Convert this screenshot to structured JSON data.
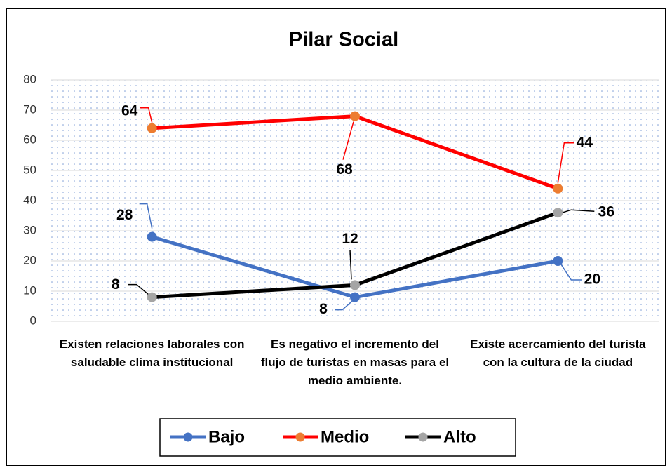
{
  "chart_data": {
    "type": "line",
    "title": "Pilar Social",
    "categories": [
      "Existen relaciones laborales con saludable clima institucional",
      "Es negativo el incremento del flujo de turistas en masas para el medio ambiente.",
      "Existe acercamiento del turista con la cultura de la ciudad"
    ],
    "series": [
      {
        "name": "Bajo",
        "color": "#4472c4",
        "marker_color": "#4472c4",
        "values": [
          28,
          8,
          20
        ]
      },
      {
        "name": "Medio",
        "color": "#ff0000",
        "marker_color": "#ed7d31",
        "values": [
          64,
          68,
          44
        ]
      },
      {
        "name": "Alto",
        "color": "#000000",
        "marker_color": "#a5a5a5",
        "values": [
          8,
          12,
          36
        ]
      }
    ],
    "ylim": [
      0,
      80
    ],
    "yticks": [
      0,
      10,
      20,
      30,
      40,
      50,
      60,
      70,
      80
    ],
    "grid": true,
    "legend": "bottom"
  }
}
